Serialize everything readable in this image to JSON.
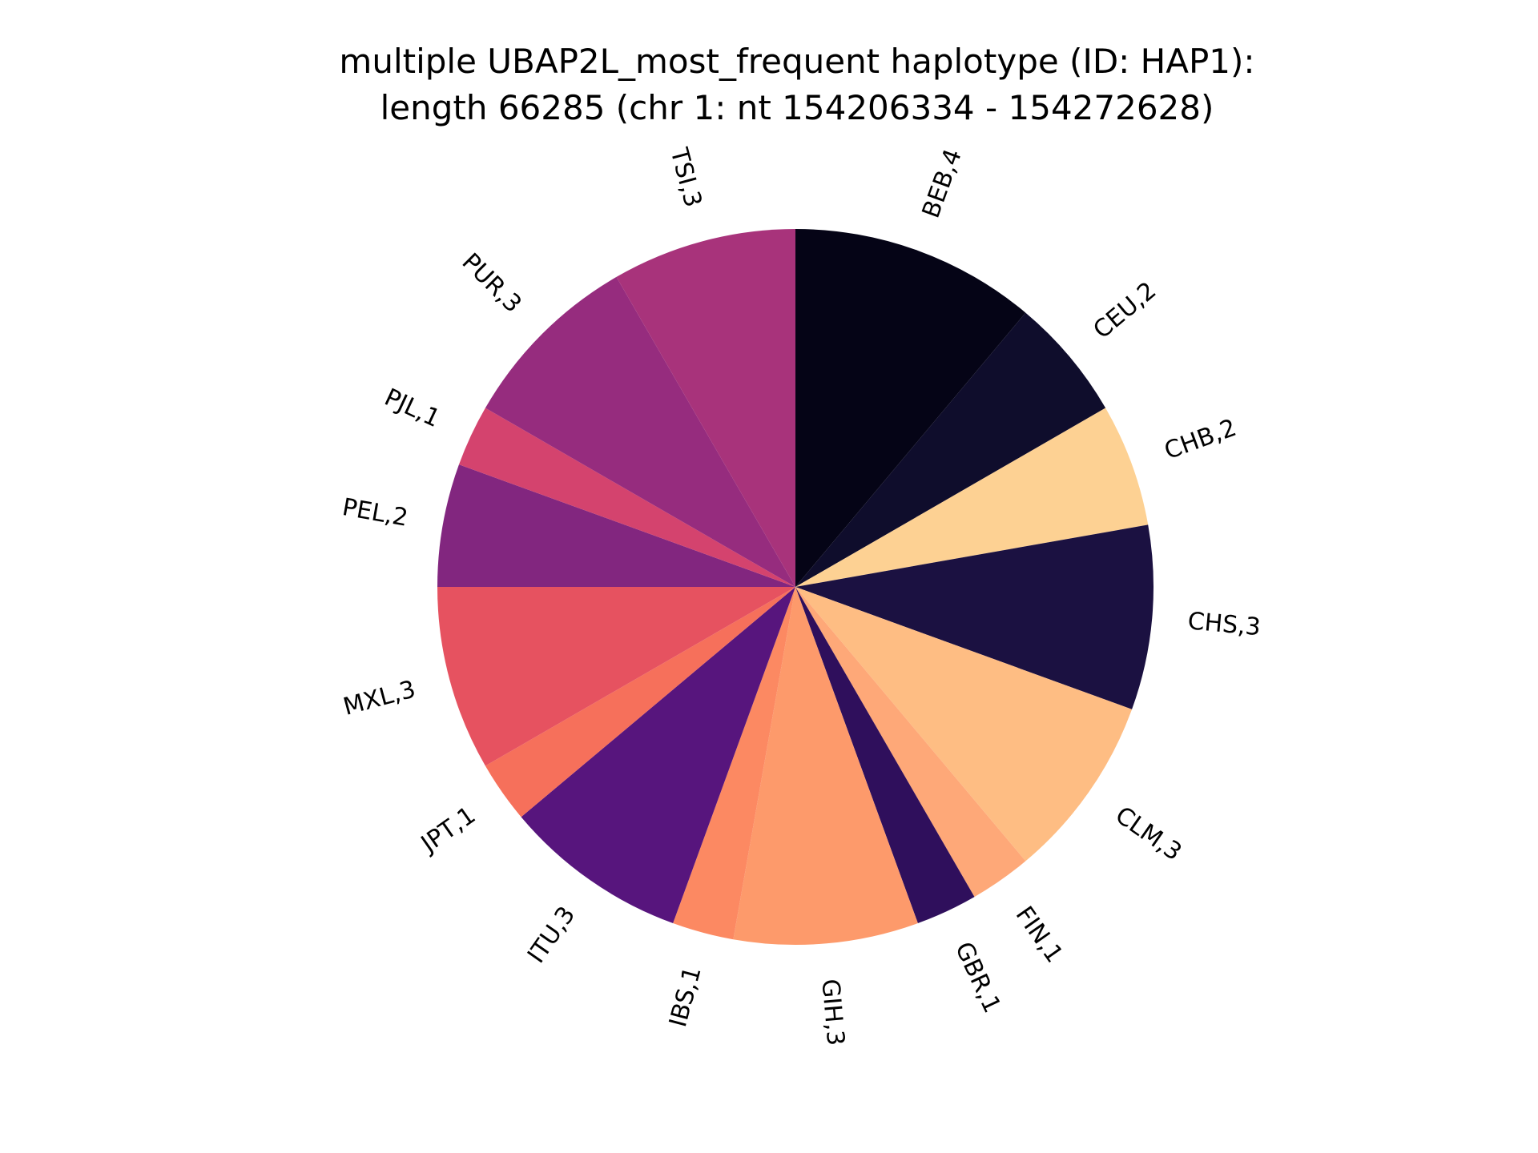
{
  "chart_data": {
    "type": "pie",
    "title_lines": [
      "multiple UBAP2L_most_frequent haplotype (ID: HAP1):",
      "length 66285 (chr 1: nt 154206334 - 154272628)"
    ],
    "start_angle": "top, clockwise",
    "slices": [
      {
        "label": "BEB,4",
        "value": 4,
        "color": "#050416"
      },
      {
        "label": "CEU,2",
        "value": 2,
        "color": "#0f0d2c"
      },
      {
        "label": "CHB,2",
        "value": 2,
        "color": "#fdd193"
      },
      {
        "label": "CHS,3",
        "value": 3,
        "color": "#1b1141"
      },
      {
        "label": "CLM,3",
        "value": 3,
        "color": "#febd83"
      },
      {
        "label": "FIN,1",
        "value": 1,
        "color": "#fea878"
      },
      {
        "label": "GBR,1",
        "value": 1,
        "color": "#2f0f5c"
      },
      {
        "label": "GIH,3",
        "value": 3,
        "color": "#fd9a6b"
      },
      {
        "label": "IBS,1",
        "value": 1,
        "color": "#fc8962"
      },
      {
        "label": "ITU,3",
        "value": 3,
        "color": "#57157d"
      },
      {
        "label": "JPT,1",
        "value": 1,
        "color": "#f6705b"
      },
      {
        "label": "MXL,3",
        "value": 3,
        "color": "#e65260"
      },
      {
        "label": "PEL,2",
        "value": 2,
        "color": "#82267f"
      },
      {
        "label": "PJL,1",
        "value": 1,
        "color": "#d4436e"
      },
      {
        "label": "PUR,3",
        "value": 3,
        "color": "#962c7e"
      },
      {
        "label": "TSI,3",
        "value": 3,
        "color": "#a8337b"
      }
    ]
  }
}
